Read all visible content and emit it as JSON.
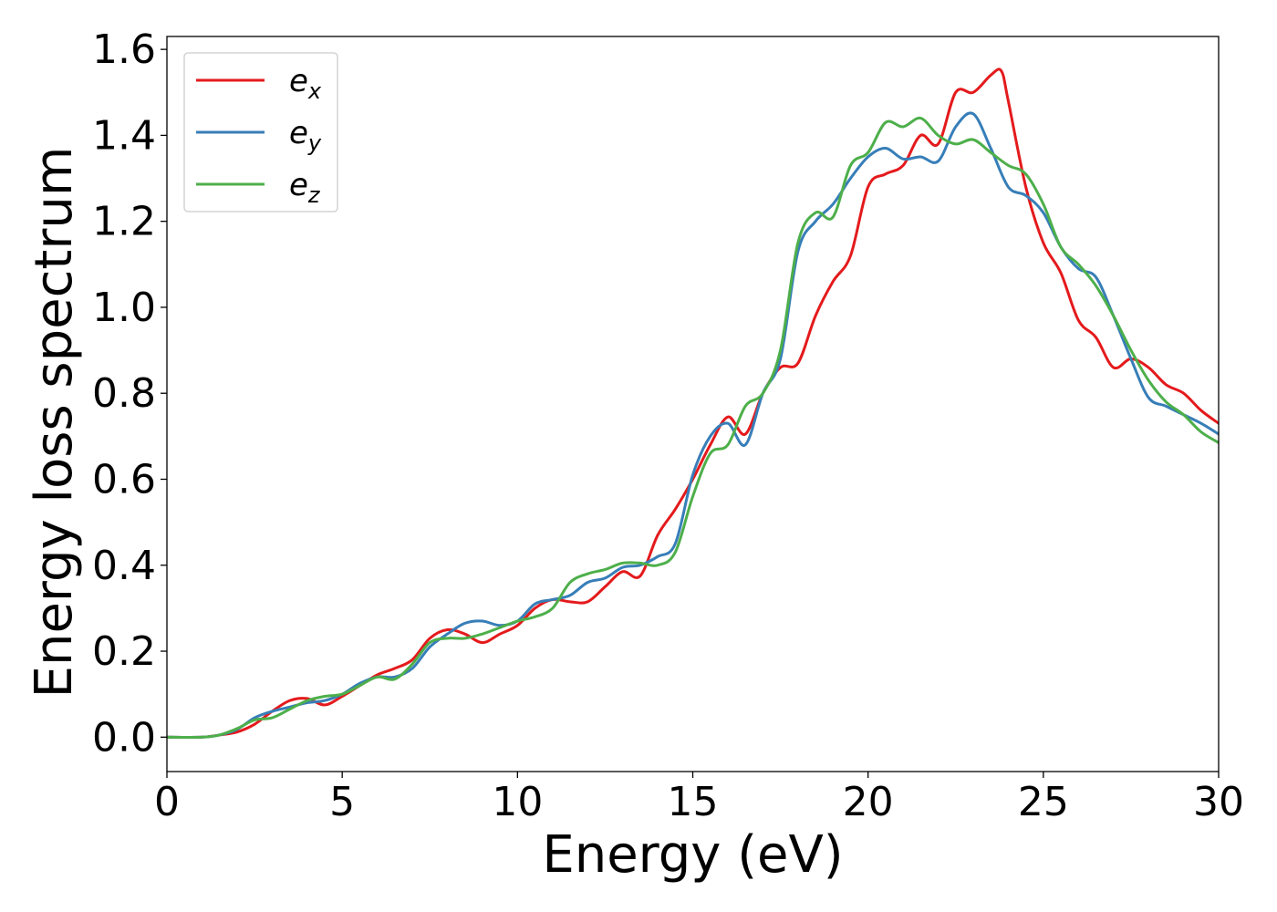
{
  "chart_data": {
    "type": "line",
    "title": "",
    "xlabel": "Energy (eV)",
    "ylabel": "Energy loss spectrum",
    "xlim": [
      0,
      30
    ],
    "ylim": [
      -0.08,
      1.63
    ],
    "xticks": [
      0,
      5,
      10,
      15,
      20,
      25,
      30
    ],
    "yticks": [
      0.0,
      0.2,
      0.4,
      0.6,
      0.8,
      1.0,
      1.2,
      1.4,
      1.6
    ],
    "xtick_labels": [
      "0",
      "5",
      "10",
      "15",
      "20",
      "25",
      "30"
    ],
    "ytick_labels": [
      "0.0",
      "0.2",
      "0.4",
      "0.6",
      "0.8",
      "1.0",
      "1.2",
      "1.4",
      "1.6"
    ],
    "grid": false,
    "legend_position": "top-left",
    "series": [
      {
        "name": "e_x",
        "label_base": "e",
        "label_sub": "x",
        "color": "#e41a1c",
        "x": [
          0,
          1,
          1.5,
          2,
          2.5,
          3,
          3.5,
          4,
          4.5,
          5,
          5.5,
          6,
          6.5,
          7,
          7.5,
          8,
          8.5,
          9,
          9.5,
          10,
          10.5,
          11,
          11.5,
          12,
          12.5,
          13,
          13.5,
          14,
          14.5,
          15,
          15.5,
          16,
          16.5,
          17,
          17.5,
          18,
          18.5,
          19,
          19.5,
          20,
          20.5,
          21,
          21.5,
          22,
          22.5,
          23,
          23.5,
          23.8,
          24,
          24.5,
          25,
          25.5,
          26,
          26.5,
          27,
          27.5,
          28,
          28.5,
          29,
          29.5,
          30
        ],
        "y": [
          0,
          0,
          0.005,
          0.012,
          0.03,
          0.06,
          0.085,
          0.09,
          0.075,
          0.095,
          0.12,
          0.145,
          0.16,
          0.18,
          0.23,
          0.25,
          0.24,
          0.22,
          0.24,
          0.26,
          0.3,
          0.32,
          0.315,
          0.315,
          0.35,
          0.385,
          0.375,
          0.47,
          0.53,
          0.6,
          0.68,
          0.745,
          0.705,
          0.8,
          0.86,
          0.87,
          0.98,
          1.06,
          1.12,
          1.28,
          1.31,
          1.33,
          1.4,
          1.38,
          1.5,
          1.5,
          1.54,
          1.55,
          1.48,
          1.28,
          1.15,
          1.08,
          0.97,
          0.93,
          0.86,
          0.88,
          0.86,
          0.82,
          0.8,
          0.76,
          0.73
        ]
      },
      {
        "name": "e_y",
        "label_base": "e",
        "label_sub": "y",
        "color": "#377eb8",
        "x": [
          0,
          1,
          1.5,
          2,
          2.5,
          3,
          3.5,
          4,
          4.5,
          5,
          5.5,
          6,
          6.5,
          7,
          7.5,
          8,
          8.5,
          9,
          9.5,
          10,
          10.5,
          11,
          11.5,
          12,
          12.5,
          13,
          13.5,
          14,
          14.5,
          15,
          15.5,
          16,
          16.5,
          17,
          17.5,
          18,
          18.5,
          19,
          19.5,
          20,
          20.5,
          21,
          21.5,
          22,
          22.5,
          23,
          23.5,
          24,
          24.5,
          25,
          25.5,
          26,
          26.5,
          27,
          27.5,
          28,
          28.5,
          29,
          29.5,
          30
        ],
        "y": [
          0,
          0,
          0.005,
          0.018,
          0.045,
          0.06,
          0.07,
          0.08,
          0.085,
          0.1,
          0.125,
          0.14,
          0.14,
          0.16,
          0.21,
          0.24,
          0.265,
          0.27,
          0.26,
          0.27,
          0.31,
          0.32,
          0.33,
          0.36,
          0.37,
          0.395,
          0.4,
          0.42,
          0.45,
          0.61,
          0.7,
          0.73,
          0.68,
          0.8,
          0.88,
          1.13,
          1.2,
          1.24,
          1.3,
          1.35,
          1.37,
          1.345,
          1.35,
          1.34,
          1.42,
          1.45,
          1.37,
          1.28,
          1.26,
          1.22,
          1.14,
          1.09,
          1.07,
          0.98,
          0.88,
          0.79,
          0.77,
          0.75,
          0.73,
          0.705
        ]
      },
      {
        "name": "e_z",
        "label_base": "e",
        "label_sub": "z",
        "color": "#4daf4a",
        "x": [
          0,
          1,
          1.5,
          2,
          2.5,
          3,
          3.5,
          4,
          4.5,
          5,
          5.5,
          6,
          6.5,
          7,
          7.5,
          8,
          8.5,
          9,
          9.5,
          10,
          10.5,
          11,
          11.5,
          12,
          12.5,
          13,
          13.5,
          14,
          14.5,
          15,
          15.5,
          16,
          16.5,
          17,
          17.5,
          18,
          18.5,
          19,
          19.5,
          20,
          20.5,
          21,
          21.5,
          22,
          22.5,
          23,
          23.5,
          24,
          24.5,
          25,
          25.5,
          26,
          26.5,
          27,
          27.5,
          28,
          28.5,
          29,
          29.5,
          30
        ],
        "y": [
          0,
          0,
          0.005,
          0.02,
          0.04,
          0.045,
          0.065,
          0.085,
          0.095,
          0.1,
          0.12,
          0.14,
          0.135,
          0.17,
          0.22,
          0.23,
          0.23,
          0.24,
          0.255,
          0.27,
          0.28,
          0.3,
          0.36,
          0.38,
          0.39,
          0.405,
          0.405,
          0.4,
          0.43,
          0.56,
          0.66,
          0.68,
          0.77,
          0.8,
          0.9,
          1.15,
          1.22,
          1.21,
          1.33,
          1.36,
          1.43,
          1.42,
          1.44,
          1.4,
          1.38,
          1.39,
          1.36,
          1.33,
          1.31,
          1.24,
          1.14,
          1.1,
          1.05,
          0.98,
          0.9,
          0.83,
          0.78,
          0.75,
          0.71,
          0.685
        ]
      }
    ]
  }
}
